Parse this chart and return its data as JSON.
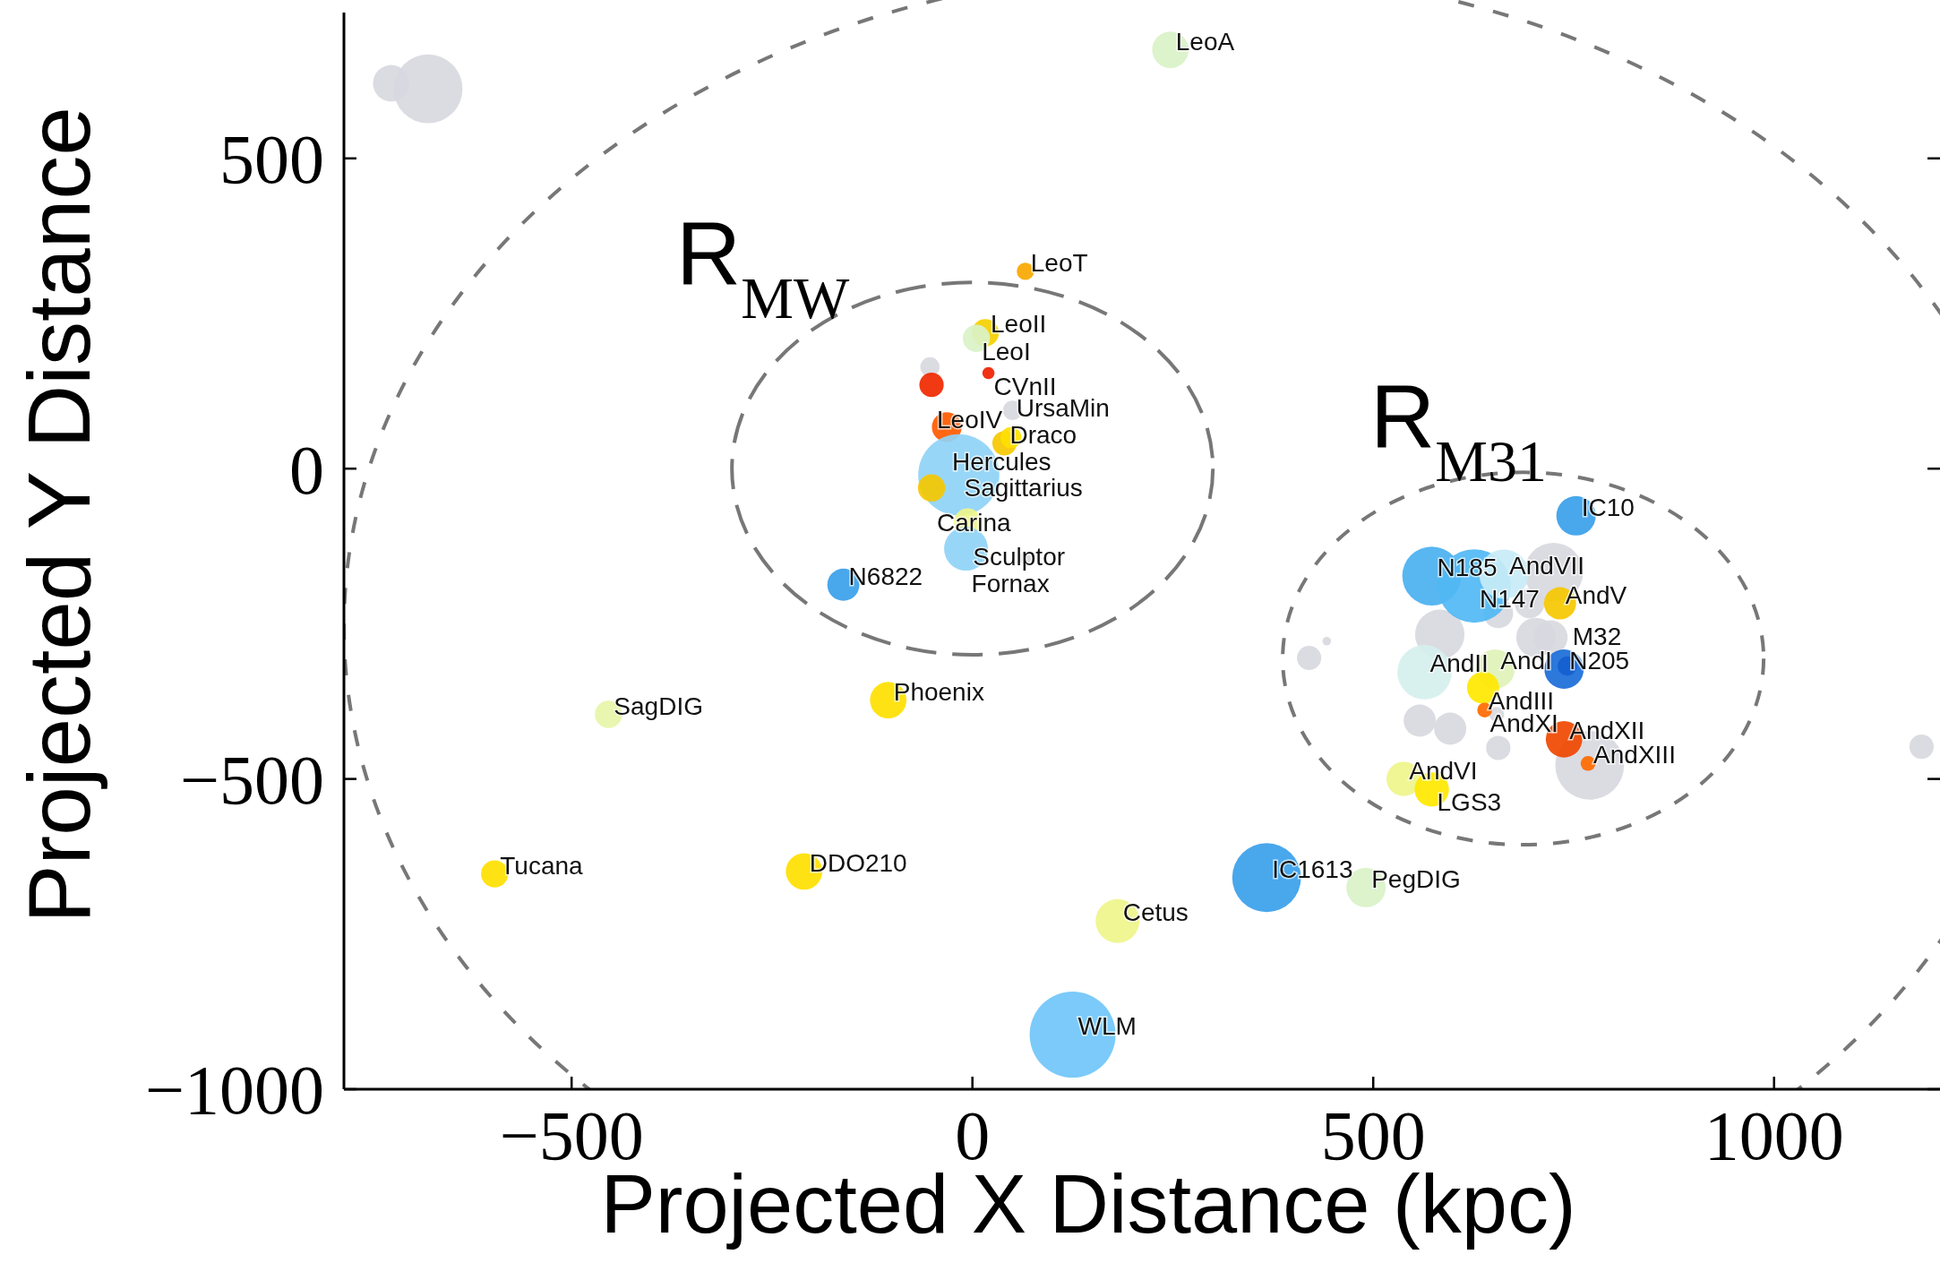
{
  "chart_data": {
    "type": "bubble",
    "xlabel": "Projected X Distance (kpc)",
    "ylabel": "Projected Y Distance",
    "xlim": [
      -784,
      1207
    ],
    "ylim": [
      -1000,
      735
    ],
    "xticks": [
      -500,
      0,
      500,
      1000
    ],
    "yticks": [
      -1000,
      -500,
      0,
      500
    ],
    "series": [
      {
        "x": [
          66,
          16,
          5,
          20,
          -51,
          -32,
          40,
          48,
          -17,
          -51,
          -6,
          -8,
          -161,
          753,
          573,
          626,
          663,
          733,
          564,
          652,
          637,
          738,
          742,
          639,
          738,
          768,
          538,
          573,
          247,
          -454,
          -105,
          -596,
          -210,
          181,
          367,
          491,
          125
        ],
        "values": [
          318,
          219,
          210,
          154,
          135,
          67,
          41,
          50,
          -10,
          -31,
          -86,
          -129,
          -187,
          -76,
          -173,
          -189,
          -170,
          -217,
          -328,
          -323,
          -353,
          -323,
          -318,
          -389,
          -436,
          -475,
          -500,
          -517,
          675,
          -396,
          -373,
          -653,
          -649,
          -729,
          -659,
          -675,
          -912
        ],
        "sizes": [
          0.04,
          0.1,
          0.1,
          0.02,
          0.08,
          0.12,
          0.08,
          0.06,
          0.89,
          0.1,
          0.1,
          0.26,
          0.14,
          0.21,
          0.47,
          0.73,
          0.33,
          0.14,
          0.4,
          0.21,
          0.14,
          0.21,
          0.05,
          0.03,
          0.18,
          0.03,
          0.16,
          0.16,
          0.18,
          0.1,
          0.18,
          0.1,
          0.18,
          0.26,
          0.64,
          0.21,
          1
        ],
        "colors": [
          "#f8a800",
          "#f5d000",
          "#d9f2c8",
          "#f02000",
          "#f02800",
          "#ff5a00",
          "#f5c800",
          "#ffe000",
          "#8fd3f7",
          "#f5c800",
          "#eef58a",
          "#8fd3f7",
          "#3aa0ea",
          "#3aa0ea",
          "#4ab0f0",
          "#50b8f4",
          "#c8ecf6",
          "#f5c800",
          "#d5f0ee",
          "#dff2b8",
          "#ffe800",
          "#1a6cd8",
          "#1560d0",
          "#ff6a00",
          "#f04800",
          "#ff6a00",
          "#eef58a",
          "#ffe800",
          "#d9f2c8",
          "#e6f5a8",
          "#ffe000",
          "#ffe000",
          "#ffe000",
          "#eef58a",
          "#3aa0ea",
          "#d9f2c8",
          "#70c6f8"
        ]
      },
      {
        "color": "#d8d8df",
        "x": [
          -725,
          -679,
          -53,
          50,
          66,
          725,
          695,
          656,
          583,
          703,
          721,
          420,
          442,
          654,
          558,
          596,
          656,
          770,
          1184
        ],
        "values": [
          621,
          612,
          164,
          94,
          -144,
          -167,
          -217,
          -233,
          -267,
          -272,
          -272,
          -305,
          -278,
          -396,
          -406,
          -419,
          -450,
          -478,
          -448
        ],
        "sizes": [
          0.18,
          0.64,
          0.05,
          0.05,
          0.02,
          0.47,
          0.12,
          0.12,
          0.33,
          0.21,
          0.16,
          0.08,
          0.01,
          0.03,
          0.14,
          0.14,
          0.08,
          0.64,
          0.08
        ]
      }
    ],
    "annotations": [
      {
        "text": "LeoT",
        "x": 66,
        "y": 318
      },
      {
        "text": "LeoII",
        "x": 16,
        "y": 219
      },
      {
        "text": "LeoI",
        "x": 5,
        "y": 210
      },
      {
        "text": "CVnII",
        "x": 20,
        "y": 154
      },
      {
        "text": "LeoIV",
        "x": -51,
        "y": 135
      },
      {
        "text": "Hercules",
        "x": -32,
        "y": 67
      },
      {
        "text": "Draco",
        "x": 40,
        "y": 41
      },
      {
        "text": "UrsaMin",
        "x": 48,
        "y": 50
      },
      {
        "text": "Sagittarius",
        "x": -17,
        "y": -10
      },
      {
        "text": "Carina",
        "x": -51,
        "y": -31
      },
      {
        "text": "Sculptor",
        "x": -6,
        "y": -86
      },
      {
        "text": "Fornax",
        "x": -8,
        "y": -129
      },
      {
        "text": "N6822",
        "x": -161,
        "y": -187
      },
      {
        "text": "IC10",
        "x": 753,
        "y": -76
      },
      {
        "text": "N185",
        "x": 573,
        "y": -173
      },
      {
        "text": "N147",
        "x": 626,
        "y": -189
      },
      {
        "text": "AndVII",
        "x": 663,
        "y": -170
      },
      {
        "text": "AndV",
        "x": 733,
        "y": -217
      },
      {
        "text": "AndII",
        "x": 564,
        "y": -328
      },
      {
        "text": "AndI",
        "x": 652,
        "y": -323
      },
      {
        "text": "AndIII",
        "x": 637,
        "y": -353
      },
      {
        "text": "N205",
        "x": 738,
        "y": -323
      },
      {
        "text": "M32",
        "x": 742,
        "y": -318
      },
      {
        "text": "AndXI",
        "x": 639,
        "y": -389
      },
      {
        "text": "AndXII",
        "x": 738,
        "y": -436
      },
      {
        "text": "AndXIII",
        "x": 768,
        "y": -475
      },
      {
        "text": "AndVI",
        "x": 538,
        "y": -500
      },
      {
        "text": "LGS3",
        "x": 573,
        "y": -517
      },
      {
        "text": "LeoA",
        "x": 247,
        "y": 675
      },
      {
        "text": "SagDIG",
        "x": -454,
        "y": -396
      },
      {
        "text": "Phoenix",
        "x": -105,
        "y": -373
      },
      {
        "text": "Tucana",
        "x": -596,
        "y": -653
      },
      {
        "text": "DDO210",
        "x": -210,
        "y": -649
      },
      {
        "text": "Cetus",
        "x": 181,
        "y": -729
      },
      {
        "text": "IC1613",
        "x": 367,
        "y": -659
      },
      {
        "text": "PegDIG",
        "x": 491,
        "y": -675
      },
      {
        "text": "WLM",
        "x": 125,
        "y": -912
      },
      "R$_{MW}$",
      "R$_{M31}$"
    ]
  }
}
